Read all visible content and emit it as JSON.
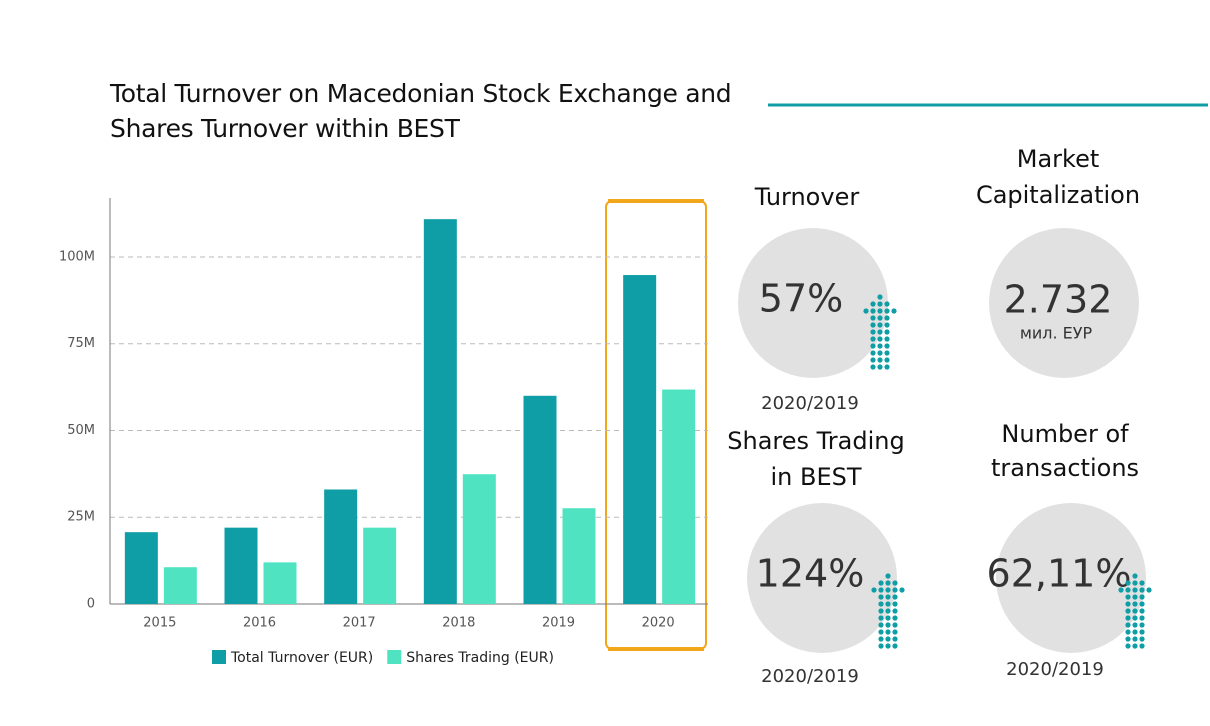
{
  "chart_data": {
    "type": "bar",
    "title": "Total Turnover on Macedonian Stock Exchange and Shares Turnover within BEST",
    "categories": [
      "2015",
      "2016",
      "2017",
      "2018",
      "2019",
      "2020"
    ],
    "series": [
      {
        "name": "Total Turnover (EUR)",
        "color": "#0f9ea5",
        "values": [
          20700000,
          22000000,
          33000000,
          110900000,
          60000000,
          94800000
        ]
      },
      {
        "name": "Shares Trading (EUR)",
        "color": "#4fe3c2",
        "values": [
          10600000,
          12000000,
          22000000,
          37400000,
          27600000,
          61800000
        ]
      }
    ],
    "ylim": [
      0,
      117000000
    ],
    "yticks": [
      0,
      {
        "value": 25000000,
        "label": "25M"
      },
      {
        "value": 50000000,
        "label": "50M"
      },
      {
        "value": 75000000,
        "label": "75M"
      },
      {
        "value": 100000000,
        "label": "100M"
      }
    ],
    "grid": true,
    "legend": "bottom"
  },
  "kpis": [
    {
      "title": [
        "Turnover"
      ],
      "value": "57%",
      "period": "2020/2019"
    },
    {
      "title": [
        "Market",
        "Capitalization"
      ],
      "value": "2.732",
      "unit": "мил. ЕУР"
    },
    {
      "title": [
        "Shares Trading",
        "in BEST"
      ],
      "value": "124%",
      "period": "2020/2019"
    },
    {
      "title": [
        "Number of",
        "transactions"
      ],
      "value": "62,11%",
      "period": "2020/2019"
    }
  ]
}
